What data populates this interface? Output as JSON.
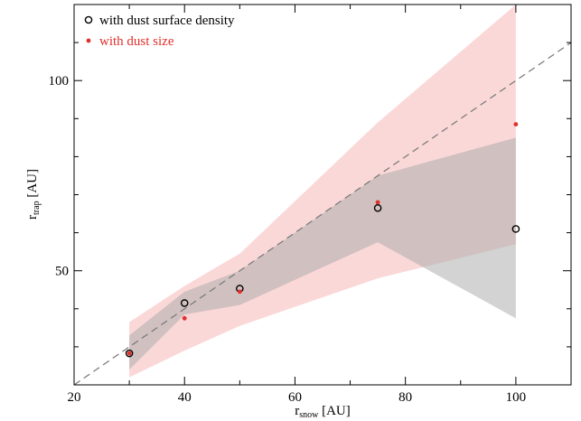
{
  "chart_data": {
    "type": "scatter",
    "xlabel": {
      "main": "r",
      "sub": "snow",
      "unit": " [AU]"
    },
    "ylabel": {
      "main": "r",
      "sub": "trap",
      "unit": " [AU]"
    },
    "xlim": [
      20,
      110
    ],
    "ylim": [
      20,
      120
    ],
    "x_ticks": [
      20,
      40,
      60,
      80,
      100
    ],
    "x_minor_ticks": [
      30,
      50,
      70,
      90,
      110
    ],
    "y_ticks": [
      50,
      100
    ],
    "y_minor_ticks": [
      30,
      40,
      60,
      70,
      80,
      90,
      110
    ],
    "grid": false,
    "legend_position": "top-left",
    "reference_line": {
      "style": "dashed",
      "color": "#777777",
      "x": [
        20,
        110
      ],
      "y": [
        20,
        110
      ]
    },
    "series": [
      {
        "name": "with dust surface density",
        "marker": "open-circle",
        "color": "#000000",
        "x": [
          30,
          40,
          50,
          75,
          100
        ],
        "y": [
          28.3,
          41.5,
          45.3,
          66.5,
          61.0
        ]
      },
      {
        "name": "with dust size",
        "marker": "filled-dot",
        "color": "#e0302c",
        "x": [
          30,
          40,
          50,
          75,
          100
        ],
        "y": [
          28.3,
          37.5,
          44.5,
          68.0,
          88.5
        ]
      }
    ],
    "bands": [
      {
        "fill": "#f8b8b8",
        "opacity": 0.55,
        "x": [
          30,
          40,
          50,
          75,
          100
        ],
        "lower": [
          22,
          29,
          35.5,
          48,
          57
        ],
        "upper": [
          36.5,
          46,
          54.5,
          89,
          120
        ]
      },
      {
        "fill": "#a8a8a8",
        "opacity": 0.5,
        "x": [
          30,
          40,
          50,
          75,
          100
        ],
        "lower": [
          24,
          38.5,
          41,
          57.5,
          37.5
        ],
        "upper": [
          33,
          44.5,
          50,
          75,
          85
        ]
      }
    ]
  }
}
